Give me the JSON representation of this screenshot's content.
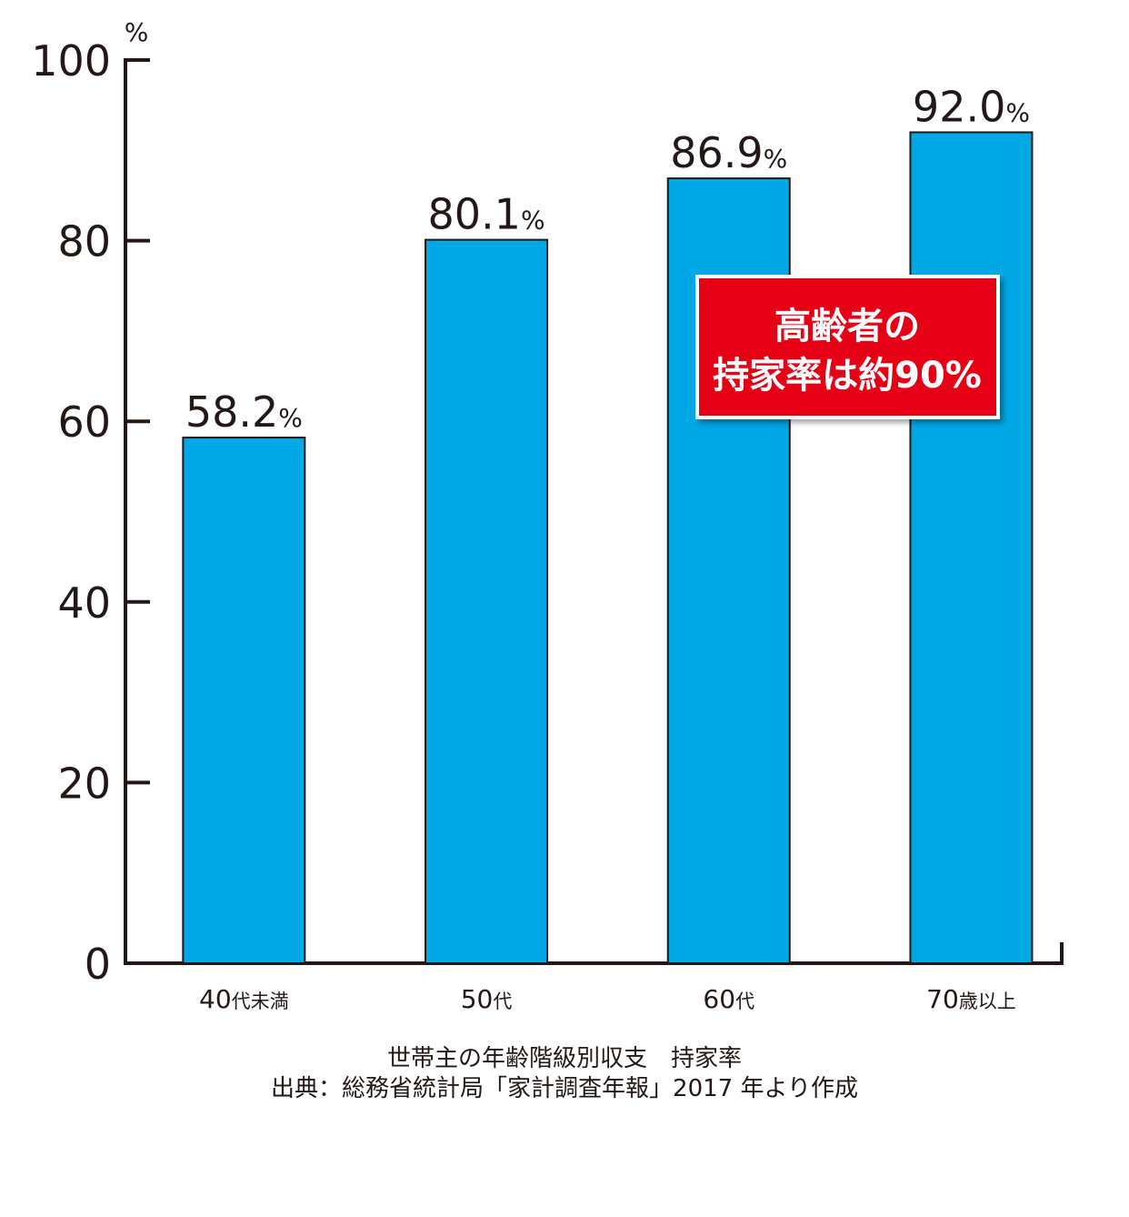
{
  "chart_data": {
    "type": "bar",
    "y_label": "%",
    "categories": [
      "40代未満",
      "50代",
      "60代",
      "70歳以上"
    ],
    "values": [
      58.2,
      80.1,
      86.9,
      92.0
    ],
    "value_labels": [
      "58.2%",
      "80.1%",
      "86.9%",
      "92.0%"
    ],
    "color": "#00a8e6",
    "ylim": [
      0,
      100
    ],
    "yticks": [
      0,
      20,
      40,
      60,
      80,
      100
    ],
    "annotation": [
      "高齢者の",
      "持家率は約90%"
    ],
    "annotation_color": "#e60012",
    "caption": [
      "世帯主の年齢階級別収支　持家率",
      "出典：総務省統計局「家計調査年報」2017 年より作成"
    ]
  }
}
